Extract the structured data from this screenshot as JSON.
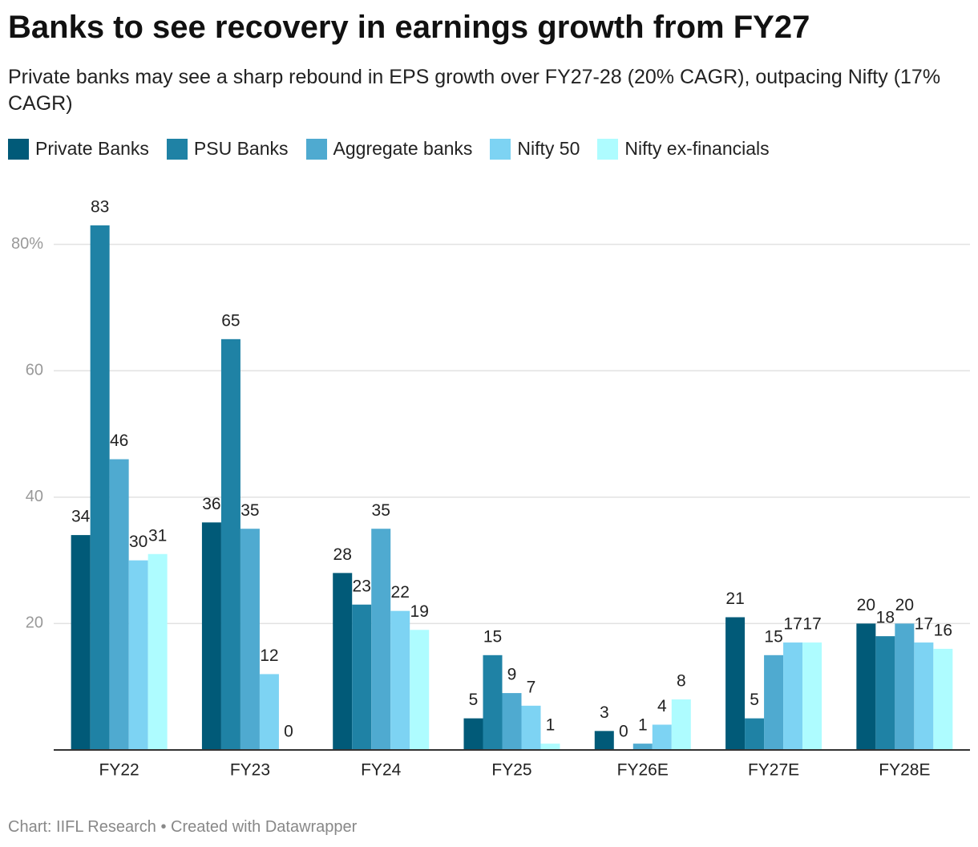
{
  "chart_data": {
    "type": "bar",
    "title": "Banks to see recovery in earnings growth from FY27",
    "subtitle": "Private banks may see a sharp rebound in EPS growth over FY27-28 (20% CAGR), outpacing Nifty (17% CAGR)",
    "categories": [
      "FY22",
      "FY23",
      "FY24",
      "FY25",
      "FY26E",
      "FY27E",
      "FY28E"
    ],
    "series": [
      {
        "name": "Private Banks",
        "color": "#015a78",
        "values": [
          34,
          36,
          28,
          5,
          3,
          21,
          20
        ]
      },
      {
        "name": "PSU Banks",
        "color": "#1f82a5",
        "values": [
          83,
          65,
          23,
          15,
          0,
          5,
          18
        ]
      },
      {
        "name": "Aggregate banks",
        "color": "#4faad0",
        "values": [
          46,
          35,
          35,
          9,
          1,
          15,
          20
        ]
      },
      {
        "name": "Nifty 50",
        "color": "#7dd3f3",
        "values": [
          30,
          12,
          22,
          7,
          4,
          17,
          17
        ]
      },
      {
        "name": "Nifty ex-financials",
        "color": "#aefcff",
        "values": [
          31,
          0,
          19,
          1,
          8,
          17,
          16
        ]
      }
    ],
    "ylim": [
      0,
      83
    ],
    "yticks": [
      20,
      40,
      60,
      {
        "value": 80,
        "label": "80%"
      }
    ],
    "grid": true,
    "source": "Chart: IIFL Research • Created with Datawrapper"
  }
}
